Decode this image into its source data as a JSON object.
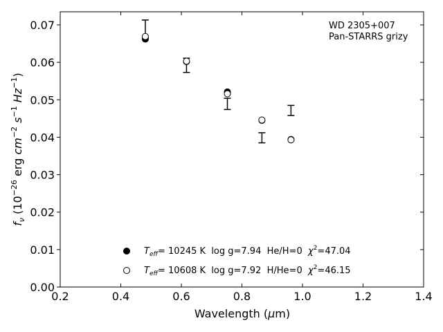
{
  "chart_data": {
    "type": "scatter",
    "title": "",
    "annotation": [
      "WD 2305+007",
      "Pan-STARRS grizy"
    ],
    "xlabel": "Wavelength (μm)",
    "ylabel": "f_ν (10^-26 erg cm^-2 s^-1 Hz^-1)",
    "xlim": [
      0.2,
      1.4
    ],
    "ylim": [
      0.0,
      0.0735
    ],
    "xticks": [
      0.2,
      0.4,
      0.6,
      0.8,
      1.0,
      1.2,
      1.4
    ],
    "xtick_labels": [
      "0.2",
      "0.4",
      "0.6",
      "0.8",
      "1.0",
      "1.2",
      "1.4"
    ],
    "yticks": [
      0.0,
      0.01,
      0.02,
      0.03,
      0.04,
      0.05,
      0.06,
      0.07
    ],
    "ytick_labels": [
      "0.00",
      "0.01",
      "0.02",
      "0.03",
      "0.04",
      "0.05",
      "0.06",
      "0.07"
    ],
    "grid": false,
    "legend_position": "bottom-center",
    "observed": {
      "x": [
        0.481,
        0.617,
        0.752,
        0.866,
        0.962
      ],
      "y_low": [
        0.0665,
        0.0573,
        0.0474,
        0.0385,
        0.0458
      ],
      "y_high": [
        0.0713,
        0.0611,
        0.0504,
        0.0412,
        0.0485
      ]
    },
    "series": [
      {
        "label": {
          "teff": "10245",
          "rest": " K  log g=7.94  He/H=0  ",
          "chi2": "=47.04"
        },
        "marker": "filled-circle",
        "x": [
          0.481,
          0.617,
          0.752,
          0.866,
          0.962
        ],
        "y": [
          0.0662,
          0.0602,
          0.0521,
          0.0445,
          0.0394
        ]
      },
      {
        "label": {
          "teff": "10608",
          "rest": " K  log g=7.92  H/He=0  ",
          "chi2": "=46.15"
        },
        "marker": "open-circle",
        "x": [
          0.481,
          0.617,
          0.752,
          0.866,
          0.962
        ],
        "y": [
          0.0669,
          0.0603,
          0.0516,
          0.0446,
          0.0393
        ]
      }
    ]
  }
}
